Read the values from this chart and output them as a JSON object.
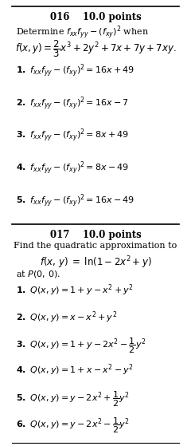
{
  "bg_color": "#ffffff",
  "text_color": "#000000",
  "figsize": [
    2.4,
    5.59
  ],
  "dpi": 100,
  "q016_header": "016    10.0 points",
  "q016_prompt": "Determine $f_{xx}f_{yy} - (f_{xy})^2$ when",
  "q016_func": "$f(x, y) = \\dfrac{2}{3}x^3 + 2y^2 + 7x + 7y + 7xy.$",
  "q016_answers": [
    "$\\mathbf{1.}\\ f_{xx}f_{yy} - (f_{xy})^2 = 16x + 49$",
    "$\\mathbf{2.}\\ f_{xx}f_{yy} - (f_{xy})^2 = 16x - 7$",
    "$\\mathbf{3.}\\ f_{xx}f_{yy} - (f_{xy})^2 = 8x + 49$",
    "$\\mathbf{4.}\\ f_{xx}f_{yy} - (f_{xy})^2 = 8x - 49$",
    "$\\mathbf{5.}\\ f_{xx}f_{yy} - (f_{xy})^2 = 16x - 49$"
  ],
  "q017_header": "017    10.0 points",
  "q017_prompt": "Find the quadratic approximation to",
  "q017_func": "$f(x,\\, y) \\;=\\; \\ln(1 - 2x^2 + y)$",
  "q017_point": "at $P(0,\\, 0)$.",
  "q017_answers": [
    "$\\mathbf{1.}\\ Q(x, y) = 1 + y - x^2 + y^2$",
    "$\\mathbf{2.}\\ Q(x, y) = x - x^2 + y^2$",
    "$\\mathbf{3.}\\ Q(x, y) = 1 + y - 2x^2 - \\dfrac{1}{2}y^2$",
    "$\\mathbf{4.}\\ Q(x, y) = 1 + x - x^2 - y^2$",
    "$\\mathbf{5.}\\ Q(x, y) = y - 2x^2 + \\dfrac{1}{2}y^2$",
    "$\\mathbf{6.}\\ Q(x, y) = y - 2x^2 - \\dfrac{1}{2}y^2$"
  ],
  "line_color": "#000000",
  "line_lw": 1.2
}
